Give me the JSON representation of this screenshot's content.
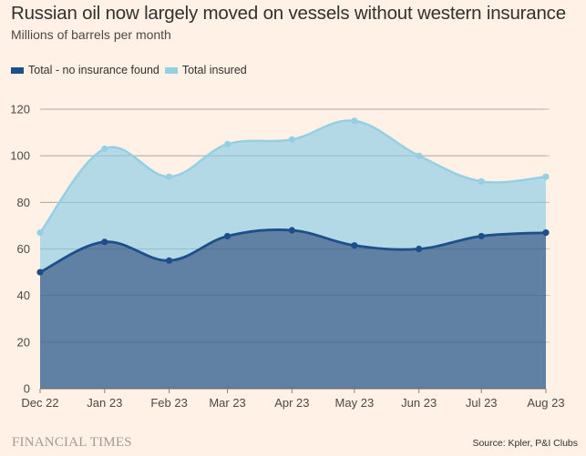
{
  "chart_data": {
    "type": "area",
    "title": "Russian oil now largely moved on vessels without western insurance",
    "subtitle": "Millions of barrels per month",
    "xlabel": "",
    "ylabel": "",
    "categories": [
      "Dec 22",
      "Jan 23",
      "Feb 23",
      "Mar 23",
      "Apr 23",
      "May 23",
      "Jun 23",
      "Jul 23",
      "Aug 23"
    ],
    "category_day_offsets": [
      0,
      31,
      62,
      90,
      121,
      151,
      182,
      212,
      243
    ],
    "series": [
      {
        "name": "Total insured",
        "color": "#96cfe3",
        "fill": "#b2d9e5",
        "values": [
          67,
          103,
          91,
          105,
          107,
          115,
          100,
          89,
          91
        ]
      },
      {
        "name": "Total - no insurance found",
        "color": "#1e4f8a",
        "fill": "#6081a3",
        "values": [
          50,
          63,
          55,
          65.5,
          68,
          61.5,
          60,
          65.5,
          67
        ]
      }
    ],
    "ylim": [
      0,
      120
    ],
    "yticks": [
      0,
      20,
      40,
      60,
      80,
      100,
      120
    ],
    "grid": true,
    "legend_position": "top-left",
    "stacked": false
  },
  "legend": [
    {
      "label": "Total - no insurance found",
      "color": "#1e4f8a"
    },
    {
      "label": "Total insured",
      "color": "#96cfe3"
    }
  ],
  "footer": {
    "brand": "FINANCIAL TIMES",
    "source": "Source: Kpler, P&I Clubs"
  }
}
